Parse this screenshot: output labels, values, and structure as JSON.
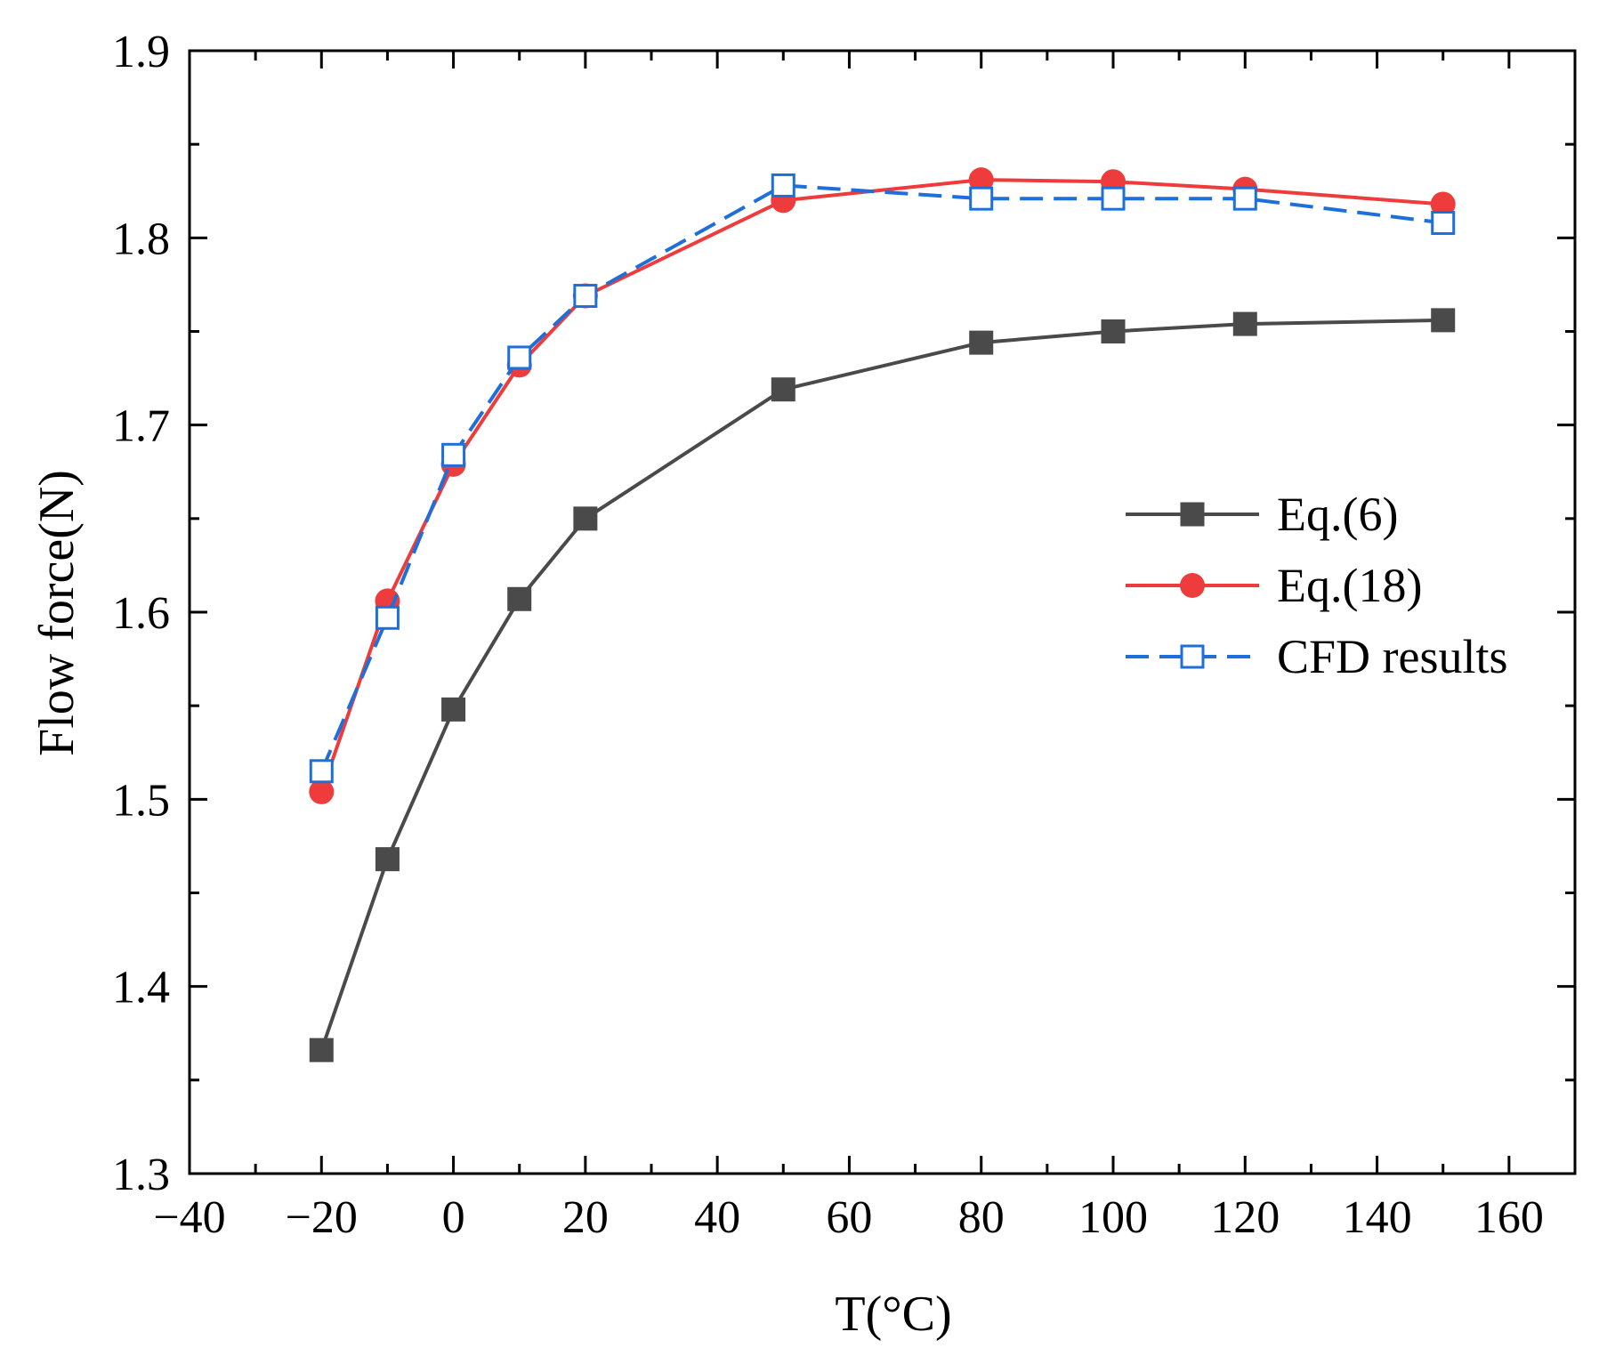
{
  "chart_data": {
    "type": "line",
    "title": "",
    "xlabel": "T(°C)",
    "ylabel": "Flow force(N)",
    "xlim": [
      -40,
      170
    ],
    "ylim": [
      1.3,
      1.9
    ],
    "xticks": [
      -40,
      -20,
      0,
      20,
      40,
      60,
      80,
      100,
      120,
      140,
      160
    ],
    "xtick_labels": [
      "−40",
      "−20",
      "0",
      "20",
      "40",
      "60",
      "80",
      "100",
      "120",
      "140",
      "160"
    ],
    "yticks": [
      1.3,
      1.4,
      1.5,
      1.6,
      1.7,
      1.8,
      1.9
    ],
    "ytick_labels": [
      "1.3",
      "1.4",
      "1.5",
      "1.6",
      "1.7",
      "1.8",
      "1.9"
    ],
    "grid": false,
    "legend_position": "center-right",
    "x": [
      -20,
      -10,
      0,
      10,
      20,
      50,
      80,
      100,
      120,
      150
    ],
    "series": [
      {
        "name": "Eq.(6)",
        "color": "#4a4a4a",
        "marker": "filled-square",
        "line_style": "solid",
        "values": [
          1.366,
          1.468,
          1.548,
          1.607,
          1.65,
          1.719,
          1.744,
          1.75,
          1.754,
          1.756
        ]
      },
      {
        "name": "Eq.(18)",
        "color": "#ee3b3b",
        "marker": "filled-circle",
        "line_style": "solid",
        "values": [
          1.504,
          1.606,
          1.679,
          1.732,
          1.769,
          1.82,
          1.831,
          1.83,
          1.826,
          1.818
        ]
      },
      {
        "name": "CFD results",
        "color": "#1e6fd9",
        "marker": "open-square",
        "line_style": "dashed",
        "values": [
          1.515,
          1.597,
          1.684,
          1.736,
          1.769,
          1.828,
          1.821,
          1.821,
          1.821,
          1.808
        ]
      }
    ]
  }
}
